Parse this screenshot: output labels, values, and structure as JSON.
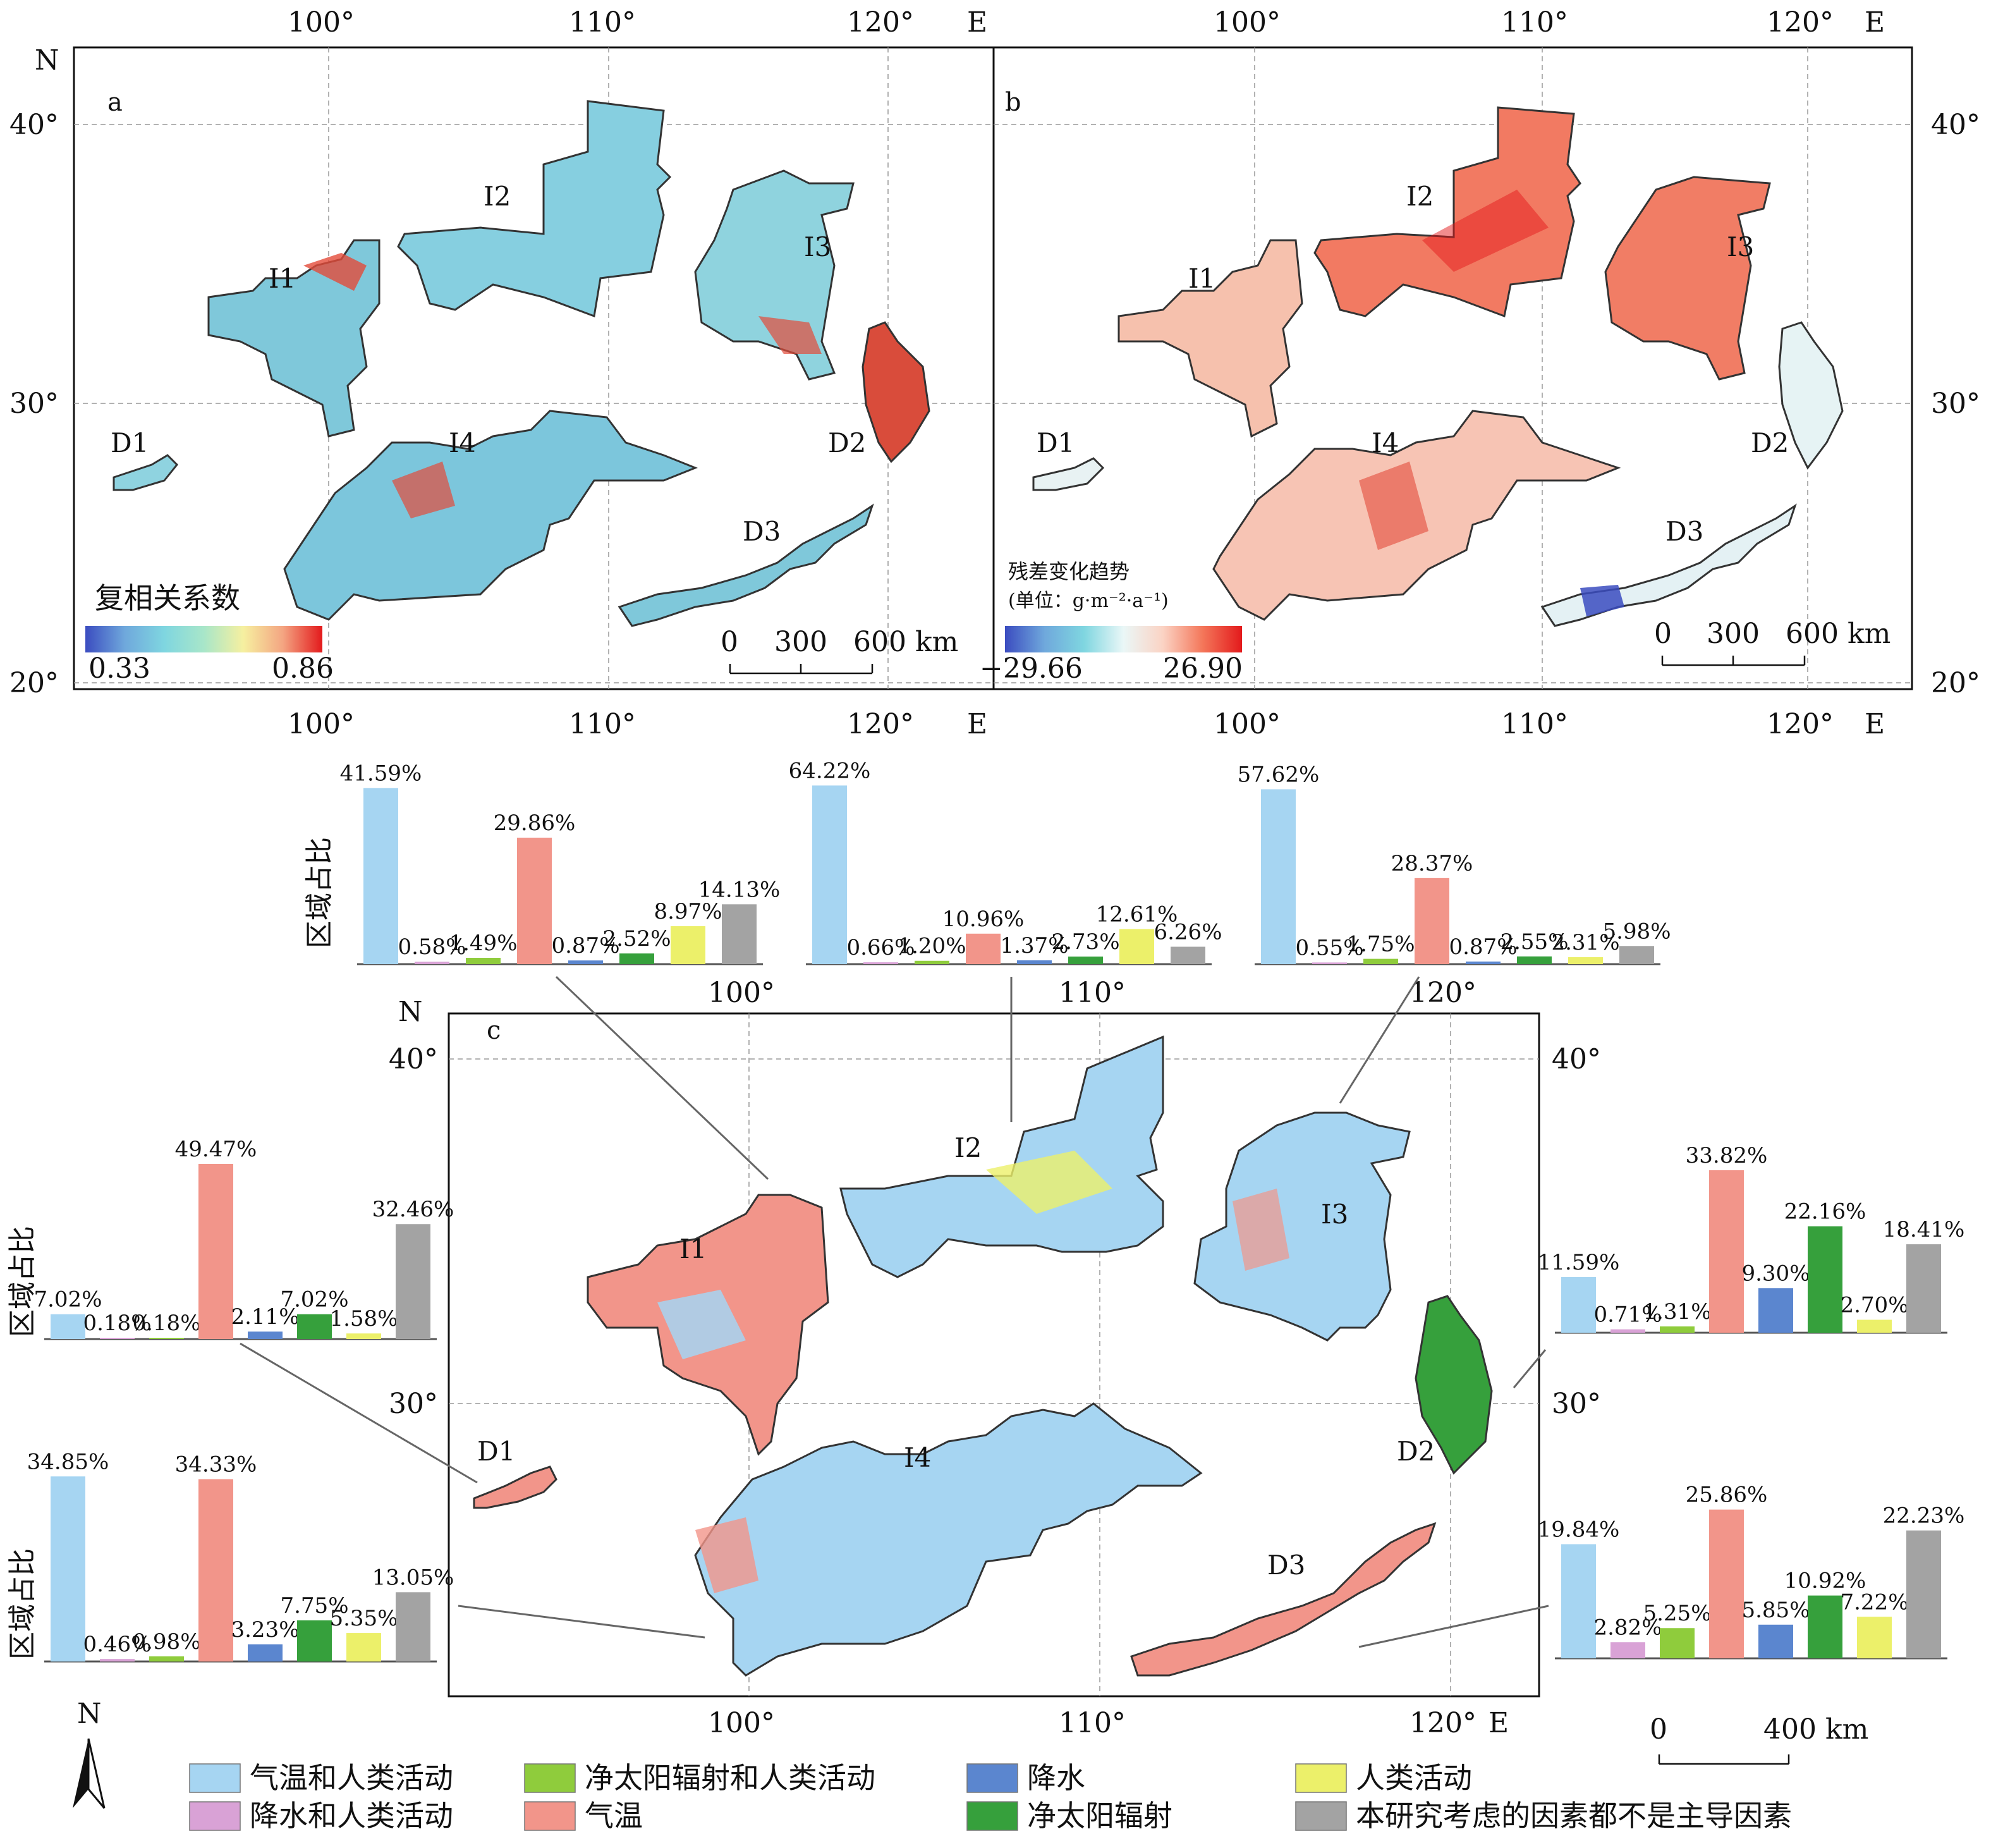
{
  "panel_a": {
    "label": "a",
    "legend_title": "复相关系数",
    "legend_min": "0.33",
    "legend_max": "0.86",
    "colormap": [
      "#3b4cc0",
      "#6fa8dc",
      "#7fd6e0",
      "#a8e6c9",
      "#f6f0a0",
      "#f4a582",
      "#e31a1c"
    ]
  },
  "panel_b": {
    "label": "b",
    "legend_title": "残差变化趋势",
    "legend_unit": "(单位：g·m⁻²·a⁻¹)",
    "legend_min": "−29.66",
    "legend_max": "26.90",
    "colormap": [
      "#3b4cc0",
      "#6fa8dc",
      "#7fd6e0",
      "#eaf7f7",
      "#fbd3c4",
      "#f4775a",
      "#e31a1c"
    ]
  },
  "panel_c": {
    "label": "c"
  },
  "axes": {
    "lon_ticks": [
      "100°",
      "110°",
      "120°"
    ],
    "lat_ticks": [
      "40°",
      "30°",
      "20°"
    ],
    "east": "E",
    "north": "N"
  },
  "scalebar_ab": {
    "labels": [
      "0",
      "300",
      "600 km"
    ]
  },
  "scalebar_c": {
    "labels": [
      "0",
      "400 km"
    ]
  },
  "regions": [
    "I1",
    "I2",
    "I3",
    "I4",
    "D1",
    "D2",
    "D3"
  ],
  "ylabel": "区域占比",
  "legend": {
    "items": [
      {
        "label": "气温和人类活动",
        "color": "#a6d5f2"
      },
      {
        "label": "净太阳辐射和人类活动",
        "color": "#8fcc3c"
      },
      {
        "label": "降水",
        "color": "#5b86cf"
      },
      {
        "label": "人类活动",
        "color": "#ecf06a"
      },
      {
        "label": "降水和人类活动",
        "color": "#d9a2d6"
      },
      {
        "label": "气温",
        "color": "#f2958a"
      },
      {
        "label": "净太阳辐射",
        "color": "#36a03c"
      },
      {
        "label": "本研究考虑的因素都不是主导因素",
        "color": "#a3a3a3"
      }
    ]
  },
  "chart_data": [
    {
      "type": "bar",
      "region": "I1",
      "ylabel": "区域占比",
      "values": [
        41.59,
        0.58,
        1.49,
        29.86,
        0.87,
        2.52,
        8.97,
        14.13
      ],
      "labels": [
        "41.59%",
        "0.58%",
        "1.49%",
        "29.86%",
        "0.87%",
        "2.52%",
        "8.97%",
        "14.13%"
      ]
    },
    {
      "type": "bar",
      "region": "I2",
      "values": [
        64.22,
        0.66,
        1.2,
        10.96,
        1.37,
        2.73,
        12.61,
        6.26
      ],
      "labels": [
        "64.22%",
        "0.66%",
        "1.20%",
        "10.96%",
        "1.37%",
        "2.73%",
        "12.61%",
        "6.26%"
      ]
    },
    {
      "type": "bar",
      "region": "I3",
      "values": [
        57.62,
        0.55,
        1.75,
        28.37,
        0.87,
        2.55,
        2.31,
        5.98
      ],
      "labels": [
        "57.62%",
        "0.55%",
        "1.75%",
        "28.37%",
        "0.87%",
        "2.55%",
        "2.31%",
        "5.98%"
      ]
    },
    {
      "type": "bar",
      "region": "D1",
      "ylabel": "区域占比",
      "values": [
        7.02,
        0.18,
        0.18,
        49.47,
        2.11,
        7.02,
        1.58,
        32.46
      ],
      "labels": [
        "7.02%",
        "0.18%",
        "0.18%",
        "49.47%",
        "2.11%",
        "7.02%",
        "1.58%",
        "32.46%"
      ]
    },
    {
      "type": "bar",
      "region": "I4",
      "ylabel": "区域占比",
      "values": [
        34.85,
        0.46,
        0.98,
        34.33,
        3.23,
        7.75,
        5.35,
        13.05
      ],
      "labels": [
        "34.85%",
        "0.46%",
        "0.98%",
        "34.33%",
        "3.23%",
        "7.75%",
        "5.35%",
        "13.05%"
      ]
    },
    {
      "type": "bar",
      "region": "D2",
      "values": [
        11.59,
        0.71,
        1.31,
        33.82,
        9.3,
        22.16,
        2.7,
        18.41
      ],
      "labels": [
        "11.59%",
        "0.71%",
        "1.31%",
        "33.82%",
        "9.30%",
        "22.16%",
        "2.70%",
        "18.41%"
      ]
    },
    {
      "type": "bar",
      "region": "D3",
      "values": [
        19.84,
        2.82,
        5.25,
        25.86,
        5.85,
        10.92,
        7.22,
        22.23
      ],
      "labels": [
        "19.84%",
        "2.82%",
        "5.25%",
        "25.86%",
        "5.85%",
        "10.92%",
        "7.22%",
        "22.23%"
      ]
    }
  ]
}
